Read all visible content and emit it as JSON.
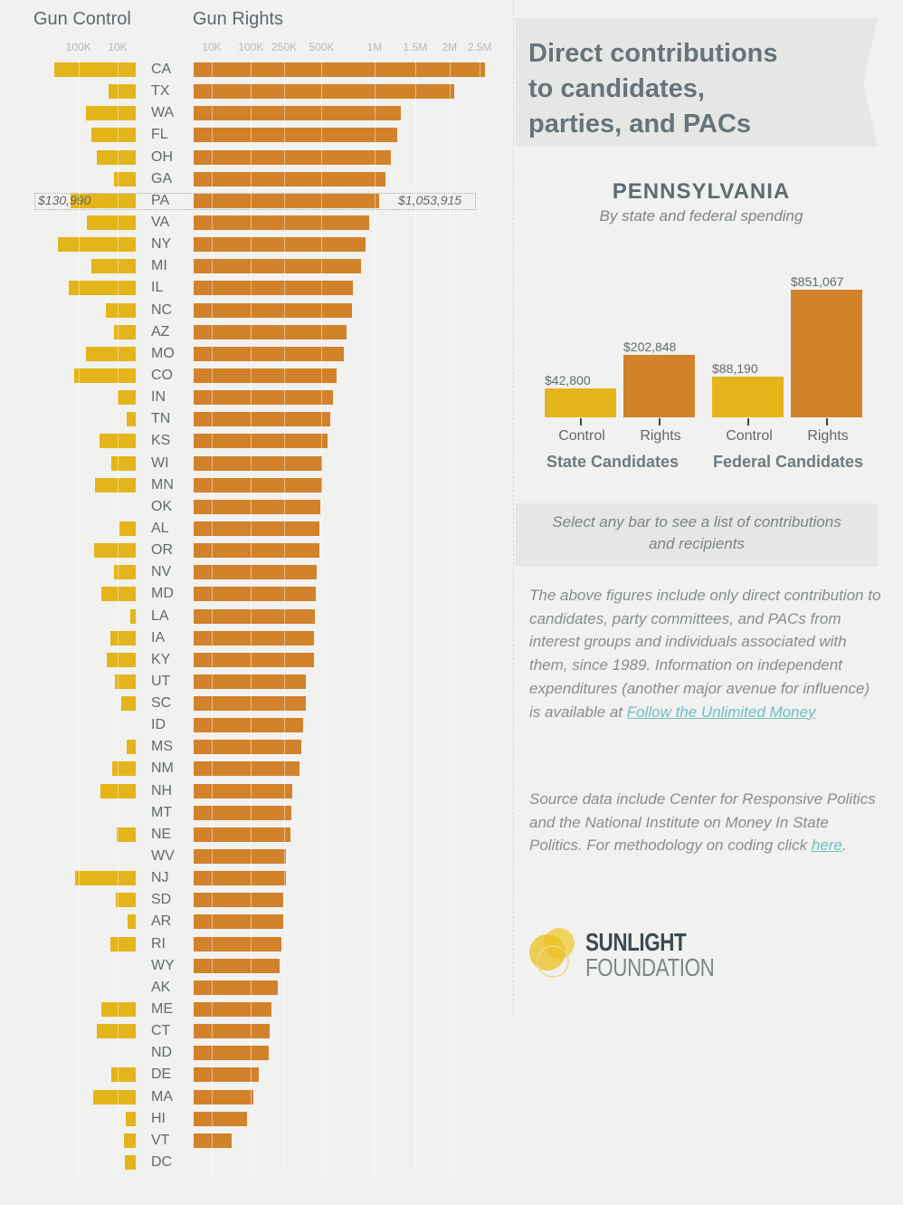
{
  "chart_data": {
    "type": "bar",
    "title": "",
    "scale": "sqrt",
    "left_header": "Gun Control",
    "right_header": "Gun Rights",
    "control_ticks": [
      "100K",
      "10K"
    ],
    "rights_ticks": [
      "10K",
      "100K",
      "250K",
      "500K",
      "1M",
      "1.5M",
      "2M",
      "2.5M"
    ],
    "series_colors": {
      "control": "#e4b51a",
      "rights": "#d2822a"
    },
    "states": [
      "CA",
      "TX",
      "WA",
      "FL",
      "OH",
      "GA",
      "PA",
      "VA",
      "NY",
      "MI",
      "IL",
      "NC",
      "AZ",
      "MO",
      "CO",
      "IN",
      "TN",
      "KS",
      "WI",
      "MN",
      "OK",
      "AL",
      "OR",
      "NV",
      "MD",
      "LA",
      "IA",
      "KY",
      "UT",
      "SC",
      "ID",
      "MS",
      "NM",
      "NH",
      "MT",
      "NE",
      "WV",
      "NJ",
      "SD",
      "AR",
      "RI",
      "WY",
      "AK",
      "ME",
      "CT",
      "ND",
      "DE",
      "MA",
      "HI",
      "VT",
      "DC"
    ],
    "series": [
      {
        "name": "Gun Control",
        "values": [
          202000,
          22000,
          76000,
          60000,
          46000,
          14000,
          130990,
          73000,
          185000,
          60000,
          137000,
          27000,
          14000,
          76000,
          116000,
          10000,
          2500,
          40000,
          18000,
          51000,
          0,
          8000,
          53000,
          14000,
          36000,
          1000,
          20000,
          26000,
          13000,
          6400,
          0,
          2500,
          17000,
          38000,
          0,
          11000,
          0,
          112000,
          12000,
          2000,
          20000,
          0,
          0,
          36000,
          46000,
          0,
          18000,
          55000,
          3000,
          4000,
          3600
        ]
      },
      {
        "name": "Gun Rights",
        "values": [
          2590000,
          2070000,
          1310000,
          1270000,
          1190000,
          1120000,
          1053915,
          941000,
          903000,
          856000,
          774000,
          766000,
          714000,
          689000,
          624000,
          593000,
          570000,
          548000,
          504000,
          504000,
          490000,
          483000,
          483000,
          462000,
          456000,
          449000,
          442000,
          442000,
          384000,
          384000,
          366000,
          354000,
          342000,
          297000,
          292000,
          286000,
          260000,
          260000,
          245000,
          245000,
          235000,
          226000,
          216000,
          185000,
          176000,
          172000,
          130000,
          109000,
          87000,
          44000,
          0
        ]
      }
    ],
    "selected": {
      "state": "PA",
      "control_label": "$130,990",
      "rights_label": "$1,053,915"
    }
  },
  "panel": {
    "title_lines": [
      "Direct contributions",
      "to candidates,",
      "parties, and PACs"
    ],
    "state_name": "PENNSYLVANIA",
    "subtitle": "By state and federal spending",
    "mini_chart": {
      "groups": [
        "State Candidates",
        "Federal Candidates"
      ],
      "bars": [
        {
          "label": "Control",
          "value": 42800,
          "value_label": "$42,800",
          "color": "#e4b51a"
        },
        {
          "label": "Rights",
          "value": 202848,
          "value_label": "$202,848",
          "color": "#d2822a"
        },
        {
          "label": "Control",
          "value": 88190,
          "value_label": "$88,190",
          "color": "#e4b51a"
        },
        {
          "label": "Rights",
          "value": 851067,
          "value_label": "$851,067",
          "color": "#d2822a"
        }
      ]
    },
    "hint": "Select any bar to see a list of contributions and recipients",
    "para1": "The above figures include only direct contribution to candidates, party committees, and PACs from interest groups and individuals associated with them, since 1989. Information on independent expenditures (another major avenue for influence) is available at ",
    "para1_link": "Follow the Unlimited Money",
    "para2": "Source data include Center for Responsive Politics and the National Institute on Money In State Politics. For methodology on coding click ",
    "para2_link": "here",
    "para2_end": ".",
    "logo_line1": "SUNLIGHT",
    "logo_line2": "FOUNDATION"
  }
}
